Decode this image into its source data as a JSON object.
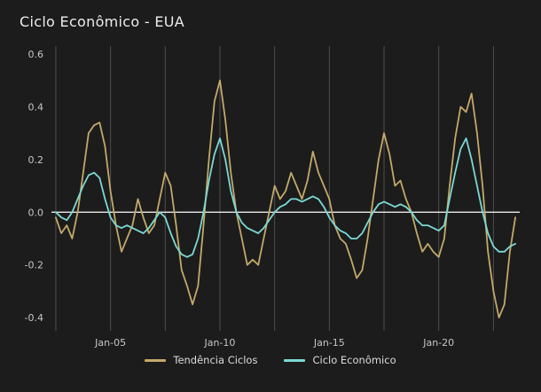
{
  "chart_data": {
    "type": "line",
    "title": "Ciclo Econômico - EUA",
    "xlabel": "",
    "ylabel": "",
    "x_unit": "decimal_year",
    "xlim": [
      2002.3,
      2023.7
    ],
    "ylim": [
      -0.45,
      0.63
    ],
    "y_ticks": [
      0.6,
      0.4,
      0.2,
      0.0,
      -0.2,
      -0.4
    ],
    "x_gridlines": [
      2002.5,
      2005,
      2007.5,
      2010,
      2012.5,
      2015,
      2017.5,
      2020,
      2022.5
    ],
    "x_ticks": [
      {
        "value": 2005,
        "label": "Jan-05"
      },
      {
        "value": 2010,
        "label": "Jan-10"
      },
      {
        "value": 2015,
        "label": "Jan-15"
      },
      {
        "value": 2020,
        "label": "Jan-20"
      }
    ],
    "zero_line": true,
    "grid": "vertical-only",
    "legend_position": "bottom-center",
    "colors": {
      "background": "#1c1c1c",
      "grid": "#4f4f4f",
      "zero_line": "#ffffff",
      "tick_text": "#c6c6c6",
      "title_text": "#ececec"
    },
    "series": [
      {
        "name": "Tendência Ciclos",
        "color": "#c3a96a",
        "x_start": 2002.5,
        "x_step": 0.25,
        "values": [
          -0.02,
          -0.08,
          -0.05,
          -0.1,
          0.0,
          0.15,
          0.3,
          0.33,
          0.34,
          0.25,
          0.08,
          -0.05,
          -0.15,
          -0.1,
          -0.05,
          0.05,
          -0.02,
          -0.08,
          -0.05,
          0.05,
          0.15,
          0.1,
          -0.05,
          -0.22,
          -0.28,
          -0.35,
          -0.28,
          -0.05,
          0.2,
          0.42,
          0.5,
          0.35,
          0.15,
          0.0,
          -0.1,
          -0.2,
          -0.18,
          -0.2,
          -0.1,
          0.0,
          0.1,
          0.05,
          0.08,
          0.15,
          0.1,
          0.05,
          0.12,
          0.23,
          0.15,
          0.1,
          0.05,
          -0.05,
          -0.1,
          -0.12,
          -0.18,
          -0.25,
          -0.22,
          -0.1,
          0.05,
          0.2,
          0.3,
          0.22,
          0.1,
          0.12,
          0.05,
          0.0,
          -0.08,
          -0.15,
          -0.12,
          -0.15,
          -0.17,
          -0.1,
          0.1,
          0.28,
          0.4,
          0.38,
          0.45,
          0.3,
          0.1,
          -0.15,
          -0.3,
          -0.4,
          -0.35,
          -0.15,
          -0.02
        ]
      },
      {
        "name": "Ciclo Econômico",
        "color": "#7bd9d4",
        "x_start": 2002.5,
        "x_step": 0.25,
        "values": [
          0.0,
          -0.02,
          -0.03,
          0.0,
          0.05,
          0.1,
          0.14,
          0.15,
          0.13,
          0.05,
          -0.02,
          -0.05,
          -0.06,
          -0.05,
          -0.06,
          -0.07,
          -0.08,
          -0.06,
          -0.03,
          0.0,
          -0.02,
          -0.08,
          -0.13,
          -0.16,
          -0.17,
          -0.16,
          -0.1,
          0.0,
          0.12,
          0.22,
          0.28,
          0.2,
          0.08,
          0.0,
          -0.04,
          -0.06,
          -0.07,
          -0.08,
          -0.06,
          -0.03,
          0.0,
          0.02,
          0.03,
          0.05,
          0.05,
          0.04,
          0.05,
          0.06,
          0.05,
          0.02,
          -0.02,
          -0.05,
          -0.07,
          -0.08,
          -0.1,
          -0.1,
          -0.08,
          -0.04,
          0.0,
          0.03,
          0.04,
          0.03,
          0.02,
          0.03,
          0.02,
          0.0,
          -0.03,
          -0.05,
          -0.05,
          -0.06,
          -0.07,
          -0.05,
          0.05,
          0.15,
          0.24,
          0.28,
          0.2,
          0.1,
          0.0,
          -0.08,
          -0.13,
          -0.15,
          -0.15,
          -0.13,
          -0.12
        ]
      }
    ]
  },
  "legend": {
    "items": [
      {
        "label": "Tendência Ciclos"
      },
      {
        "label": "Ciclo Econômico"
      }
    ]
  }
}
